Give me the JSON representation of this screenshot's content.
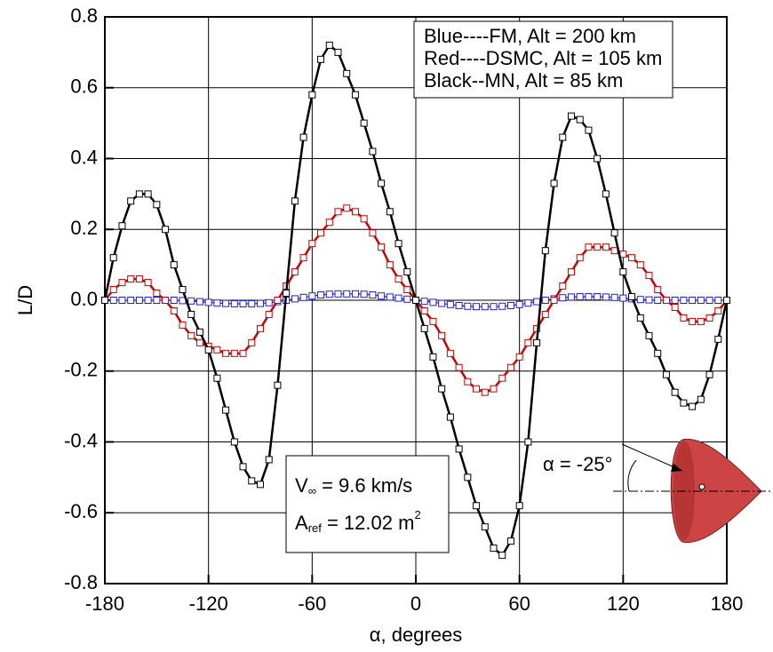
{
  "chart_data": {
    "type": "line",
    "x": [
      -180,
      -175,
      -170,
      -165,
      -160,
      -155,
      -150,
      -145,
      -140,
      -135,
      -130,
      -125,
      -120,
      -115,
      -110,
      -105,
      -100,
      -95,
      -90,
      -85,
      -80,
      -75,
      -70,
      -65,
      -60,
      -55,
      -50,
      -45,
      -40,
      -35,
      -30,
      -25,
      -20,
      -15,
      -10,
      -5,
      0,
      5,
      10,
      15,
      20,
      25,
      30,
      35,
      40,
      45,
      50,
      55,
      60,
      65,
      70,
      75,
      80,
      85,
      90,
      95,
      100,
      105,
      110,
      115,
      120,
      125,
      130,
      135,
      140,
      145,
      150,
      155,
      160,
      165,
      170,
      175,
      180
    ],
    "series": [
      {
        "name": "Blue----FM, Alt = 200 km",
        "color": "#1f1fe0",
        "values": [
          0,
          0,
          0,
          0,
          0,
          0,
          0,
          0,
          0,
          -0.001,
          -0.002,
          -0.004,
          -0.006,
          -0.008,
          -0.009,
          -0.01,
          -0.01,
          -0.01,
          -0.009,
          -0.007,
          -0.004,
          0,
          0.004,
          0.008,
          0.012,
          0.015,
          0.017,
          0.018,
          0.018,
          0.018,
          0.017,
          0.015,
          0.012,
          0.009,
          0.006,
          0.003,
          0,
          -0.003,
          -0.006,
          -0.009,
          -0.012,
          -0.015,
          -0.017,
          -0.018,
          -0.018,
          -0.018,
          -0.017,
          -0.015,
          -0.012,
          -0.008,
          -0.004,
          0,
          0.004,
          0.007,
          0.009,
          0.01,
          0.01,
          0.01,
          0.009,
          0.008,
          0.006,
          0.004,
          0.002,
          0.001,
          0,
          0,
          0,
          0,
          0,
          0,
          0,
          0,
          0
        ]
      },
      {
        "name": "Red----DSMC, Alt = 105 km",
        "color": "#cc0000",
        "values": [
          0,
          0.03,
          0.05,
          0.06,
          0.06,
          0.05,
          0.02,
          0,
          -0.03,
          -0.07,
          -0.1,
          -0.12,
          -0.13,
          -0.14,
          -0.15,
          -0.15,
          -0.15,
          -0.12,
          -0.08,
          -0.04,
          0,
          0.04,
          0.08,
          0.12,
          0.16,
          0.19,
          0.22,
          0.25,
          0.26,
          0.25,
          0.23,
          0.19,
          0.15,
          0.1,
          0.06,
          0.03,
          0,
          -0.03,
          -0.06,
          -0.1,
          -0.15,
          -0.19,
          -0.23,
          -0.25,
          -0.26,
          -0.25,
          -0.22,
          -0.19,
          -0.16,
          -0.12,
          -0.08,
          -0.04,
          0,
          0.04,
          0.08,
          0.12,
          0.15,
          0.15,
          0.15,
          0.14,
          0.13,
          0.12,
          0.1,
          0.07,
          0.03,
          0,
          -0.02,
          -0.05,
          -0.06,
          -0.06,
          -0.05,
          -0.03,
          0
        ]
      },
      {
        "name": "Black--MN, Alt = 85 km",
        "color": "#000000",
        "values": [
          0,
          0.12,
          0.21,
          0.28,
          0.3,
          0.3,
          0.27,
          0.2,
          0.1,
          0.03,
          -0.04,
          -0.09,
          -0.14,
          -0.22,
          -0.31,
          -0.4,
          -0.47,
          -0.51,
          -0.52,
          -0.45,
          -0.24,
          0.02,
          0.28,
          0.46,
          0.58,
          0.68,
          0.72,
          0.7,
          0.64,
          0.58,
          0.5,
          0.42,
          0.33,
          0.25,
          0.16,
          0.08,
          0,
          -0.08,
          -0.16,
          -0.25,
          -0.33,
          -0.42,
          -0.5,
          -0.58,
          -0.64,
          -0.7,
          -0.72,
          -0.68,
          -0.58,
          -0.4,
          -0.12,
          0.14,
          0.33,
          0.46,
          0.52,
          0.51,
          0.48,
          0.4,
          0.3,
          0.19,
          0.08,
          0.01,
          -0.05,
          -0.1,
          -0.15,
          -0.21,
          -0.26,
          -0.29,
          -0.3,
          -0.28,
          -0.21,
          -0.11,
          0
        ]
      }
    ],
    "x_label": "α, degrees",
    "y_label": "L/D",
    "xlim": [
      -180,
      180
    ],
    "xticks": [
      -180,
      -120,
      -60,
      0,
      60,
      120,
      180
    ],
    "ylim": [
      -0.8,
      0.8
    ],
    "yticks": [
      -0.8,
      -0.6,
      -0.4,
      -0.2,
      {
        "value": 0,
        "label": "0.0"
      },
      0.2,
      0.4,
      0.6,
      0.8
    ],
    "grid": true,
    "legend": "upper right",
    "annotations": [
      {
        "main": "V",
        "sub": "∞",
        "rest": " = 9.6 km/s"
      },
      {
        "main": "A",
        "sub": "ref",
        "rest": " = 12.02 m",
        "sup": "2"
      }
    ],
    "inset_label": "α = -25°"
  }
}
